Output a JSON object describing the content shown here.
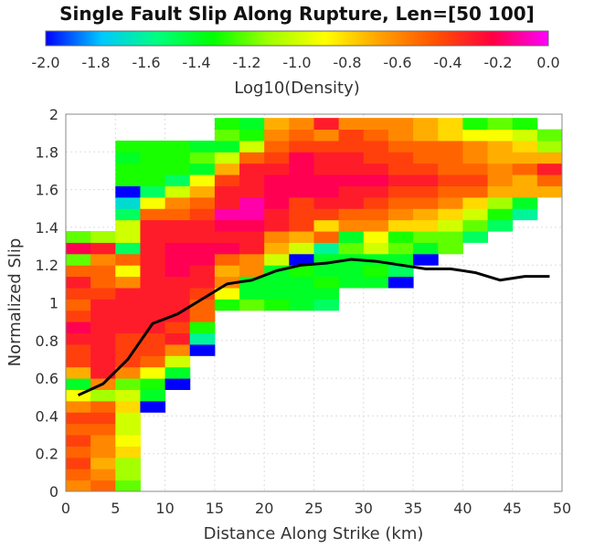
{
  "chart_data": {
    "type": "heatmap",
    "title": "Single Fault Slip Along Rupture, Len=[50 100]",
    "xlabel": "Distance Along Strike (km)",
    "ylabel": "Normalized Slip",
    "xlim": [
      0,
      50
    ],
    "ylim": [
      0,
      2
    ],
    "x_ticks": [
      "0",
      "5",
      "10",
      "15",
      "20",
      "25",
      "30",
      "35",
      "40",
      "45",
      "50"
    ],
    "y_ticks": [
      "0",
      "0.2",
      "0.4",
      "0.6",
      "0.8",
      "1",
      "1.2",
      "1.4",
      "1.6",
      "1.8",
      "2"
    ],
    "grid": true,
    "colorbar": {
      "label": "Log10(Density)",
      "range": [
        -2.0,
        0.0
      ],
      "ticks": [
        "-2.0",
        "-1.8",
        "-1.6",
        "-1.4",
        "-1.2",
        "-1.0",
        "-0.8",
        "-0.6",
        "-0.4",
        "-0.2",
        "0.0"
      ],
      "colormap": [
        "#0000ff",
        "#00c8ff",
        "#00ff7f",
        "#00ff00",
        "#a0ff00",
        "#ffff00",
        "#ffa000",
        "#ff5000",
        "#ff0040",
        "#ff00ff"
      ]
    },
    "bin_width_x": 2.5,
    "bin_height_y": 0.06,
    "columns": [
      {
        "x0": 0,
        "y0": 0.0,
        "values": [
          -0.6,
          -0.5,
          -0.4,
          -0.5,
          -0.4,
          -0.5,
          -0.4,
          -0.6,
          -0.9,
          -1.4,
          -0.7,
          -0.4,
          -0.4,
          -0.3,
          -0.2,
          -0.4,
          -0.5,
          -0.4,
          -0.3,
          -0.5,
          -1.2,
          -0.2,
          -1.2
        ]
      },
      {
        "x0": 2.5,
        "y0": 0.0,
        "values": [
          -0.5,
          -0.6,
          -0.7,
          -0.6,
          -0.6,
          -0.5,
          -0.4,
          -0.5,
          -1.1,
          -0.6,
          -0.3,
          -0.3,
          -0.3,
          -0.3,
          -0.3,
          -0.3,
          -0.3,
          -0.4,
          -0.5,
          -0.5,
          -0.6,
          -0.3,
          -1.1
        ]
      },
      {
        "x0": 5,
        "y0": 0.0,
        "values": [
          -1.2,
          -1.1,
          -1.1,
          -0.8,
          -0.9,
          -1.0,
          -1.0,
          -0.8,
          -1.0,
          -1.2,
          -0.6,
          -0.4,
          -0.4,
          -0.4,
          -0.3,
          -0.3,
          -0.3,
          -0.3,
          -0.6,
          -0.9,
          -0.5,
          -1.5,
          -1.0,
          -1.0,
          -1.5,
          -1.7,
          -2.0,
          -1.3,
          -1.3,
          -1.4,
          -1.3
        ]
      },
      {
        "x0": 7.5,
        "y0": 0.0,
        "values": [
          null,
          null,
          null,
          null,
          null,
          null,
          null,
          -2.0,
          -1.4,
          -1.3,
          -0.9,
          -0.5,
          -0.4,
          -0.4,
          -0.3,
          -0.3,
          -0.3,
          -0.3,
          -0.3,
          -0.3,
          -0.3,
          -0.3,
          -0.3,
          -0.3,
          -0.5,
          -0.9,
          -1.5,
          -1.3,
          -1.3,
          -1.3,
          -1.3
        ]
      },
      {
        "x0": 10,
        "y0": 0.0,
        "values": [
          null,
          null,
          null,
          null,
          null,
          null,
          null,
          null,
          null,
          -2.0,
          -1.4,
          -1.0,
          -0.6,
          -0.3,
          -0.4,
          -0.3,
          -0.3,
          -0.3,
          -0.3,
          -0.2,
          -0.2,
          -0.2,
          -0.3,
          -0.3,
          -0.5,
          -0.6,
          -1.0,
          -1.5,
          -1.3,
          -1.3,
          -1.3
        ]
      },
      {
        "x0": 12.5,
        "y0": 0.0,
        "values": [
          null,
          null,
          null,
          null,
          null,
          null,
          null,
          null,
          null,
          null,
          null,
          null,
          -2.0,
          -1.6,
          -1.3,
          -0.5,
          -0.5,
          -0.4,
          -0.3,
          -0.3,
          -0.2,
          -0.2,
          -0.3,
          -0.3,
          -0.4,
          -0.5,
          -0.7,
          -0.9,
          -1.4,
          -1.2,
          -1.4
        ]
      },
      {
        "x0": 15,
        "y0": 0.0,
        "values": [
          null,
          null,
          null,
          null,
          null,
          null,
          null,
          null,
          null,
          null,
          null,
          null,
          null,
          null,
          null,
          null,
          -1.3,
          -0.9,
          -0.6,
          -0.7,
          -0.5,
          -0.2,
          -0.3,
          -0.2,
          -0.1,
          -0.3,
          -0.3,
          -0.4,
          -0.7,
          -1.0,
          -1.4,
          -1.2,
          -1.3
        ]
      },
      {
        "x0": 17.5,
        "y0": 0.0,
        "values": [
          null,
          null,
          null,
          null,
          null,
          null,
          null,
          null,
          null,
          null,
          null,
          null,
          null,
          null,
          null,
          null,
          -1.2,
          -1.4,
          -1.4,
          -0.6,
          -0.6,
          -0.3,
          -0.3,
          -0.2,
          -0.1,
          -0.1,
          -0.3,
          -0.3,
          -0.3,
          -0.5,
          -1.0,
          -1.3,
          -1.4
        ]
      },
      {
        "x0": 20,
        "y0": 0.0,
        "values": [
          null,
          null,
          null,
          null,
          null,
          null,
          null,
          null,
          null,
          null,
          null,
          null,
          null,
          null,
          null,
          null,
          -1.3,
          -1.4,
          -1.4,
          -1.4,
          -1.0,
          -0.7,
          -0.6,
          -0.3,
          -0.3,
          -0.2,
          -0.2,
          -0.2,
          -0.3,
          -0.4,
          -0.5,
          -0.6,
          -0.7,
          -0.4,
          -0.4,
          -1.2,
          -1.5
        ]
      },
      {
        "x0": 22.5,
        "y0": 0.0,
        "values": [
          null,
          null,
          null,
          null,
          null,
          null,
          null,
          null,
          null,
          null,
          null,
          null,
          null,
          null,
          null,
          null,
          -1.4,
          -1.4,
          -1.4,
          -1.3,
          -2.0,
          -1.0,
          -0.7,
          -0.4,
          -0.4,
          -0.4,
          -0.2,
          -0.2,
          -0.2,
          -0.2,
          -0.4,
          -0.5,
          -0.6,
          -0.7,
          -0.3,
          -0.4,
          -1.3,
          -0.7,
          -1.3
        ]
      },
      {
        "x0": 25,
        "y0": 0.0,
        "values": [
          null,
          null,
          null,
          null,
          null,
          null,
          null,
          null,
          null,
          null,
          null,
          null,
          null,
          null,
          null,
          null,
          -1.5,
          -1.4,
          -1.3,
          -1.4,
          -1.4,
          -1.6,
          -0.5,
          -0.8,
          -0.4,
          -0.3,
          -0.2,
          -0.2,
          -0.3,
          -0.3,
          -0.4,
          -0.6,
          -0.3,
          -0.4,
          -1.0,
          -0.8,
          -1.4,
          -1.4,
          -1.4,
          -1.4,
          -2.0
        ]
      },
      {
        "x0": 27.5,
        "y0": 0.0,
        "values": [
          null,
          null,
          null,
          null,
          null,
          null,
          null,
          null,
          null,
          null,
          null,
          null,
          null,
          null,
          null,
          null,
          null,
          null,
          -1.4,
          -1.4,
          -1.4,
          -1.2,
          -1.4,
          -0.6,
          -0.5,
          -0.3,
          -0.3,
          -0.2,
          -0.3,
          -0.3,
          -0.4,
          -0.4,
          -0.6,
          -0.3,
          -0.6,
          -1.2,
          -1.4,
          -1.2,
          -1.3,
          -1.6,
          -1.3
        ]
      },
      {
        "x0": 30,
        "y0": 0.0,
        "values": [
          null,
          null,
          null,
          null,
          null,
          null,
          null,
          null,
          null,
          null,
          null,
          null,
          null,
          null,
          null,
          null,
          null,
          null,
          -1.4,
          -1.3,
          -1.4,
          -1.0,
          -0.9,
          -0.6,
          -0.5,
          -0.4,
          -0.3,
          -0.2,
          -0.3,
          -0.4,
          -0.4,
          -0.5,
          -0.6,
          -0.5,
          -0.7,
          -1.0,
          -1.3,
          -1.3,
          -1.4,
          -1.5,
          -1.3
        ]
      },
      {
        "x0": 32.5,
        "y0": 0.0,
        "values": [
          null,
          null,
          null,
          null,
          null,
          null,
          null,
          null,
          null,
          null,
          null,
          null,
          null,
          null,
          null,
          null,
          null,
          null,
          -2.0,
          -1.5,
          -1.4,
          -1.2,
          -1.3,
          -0.8,
          -0.6,
          -0.5,
          -0.4,
          -0.3,
          -0.4,
          -0.4,
          -0.5,
          -0.6,
          -0.6,
          -0.5,
          -0.8,
          -1.4,
          null,
          -1.4,
          -1.4,
          -1.5
        ]
      },
      {
        "x0": 35,
        "y0": 0.0,
        "values": [
          null,
          null,
          null,
          null,
          null,
          null,
          null,
          null,
          null,
          null,
          null,
          null,
          null,
          null,
          null,
          null,
          null,
          null,
          null,
          null,
          -2.0,
          -1.4,
          -1.2,
          -0.8,
          -0.7,
          -0.5,
          -0.4,
          -0.3,
          -0.4,
          -0.5,
          -0.5,
          -0.7,
          -0.7,
          -0.6,
          -0.8,
          -1.2,
          null,
          -1.4,
          -1.4
        ]
      },
      {
        "x0": 37.5,
        "y0": 0.0,
        "values": [
          null,
          null,
          null,
          null,
          null,
          null,
          null,
          null,
          null,
          null,
          null,
          null,
          null,
          null,
          null,
          null,
          null,
          null,
          null,
          null,
          null,
          -1.2,
          -1.2,
          -1.0,
          -0.8,
          -0.6,
          -0.5,
          -0.4,
          -0.5,
          -0.5,
          -0.5,
          -0.8,
          -0.8,
          -0.6,
          -0.9,
          -1.4,
          null,
          -1.4,
          -1.4
        ]
      },
      {
        "x0": 40,
        "y0": 0.0,
        "values": [
          null,
          null,
          null,
          null,
          null,
          null,
          null,
          null,
          null,
          null,
          null,
          null,
          null,
          null,
          null,
          null,
          null,
          null,
          null,
          null,
          null,
          null,
          -1.5,
          -1.2,
          -1.0,
          -0.8,
          -0.5,
          -0.4,
          -0.5,
          -0.6,
          -0.6,
          -0.9,
          -1.3,
          -1.4,
          null,
          null,
          null,
          -1.4,
          -1.4,
          -2.0
        ]
      },
      {
        "x0": 42.5,
        "y0": 0.0,
        "values": [
          null,
          null,
          null,
          null,
          null,
          null,
          null,
          null,
          null,
          null,
          null,
          null,
          null,
          null,
          null,
          null,
          null,
          null,
          null,
          null,
          null,
          null,
          null,
          -1.5,
          -1.3,
          -1.1,
          -0.7,
          -0.6,
          -0.6,
          -0.7,
          -0.7,
          -0.9,
          -1.2,
          -1.4
        ]
      },
      {
        "x0": 45,
        "y0": 0.0,
        "values": [
          null,
          null,
          null,
          null,
          null,
          null,
          null,
          null,
          null,
          null,
          null,
          null,
          null,
          null,
          null,
          null,
          null,
          null,
          null,
          null,
          null,
          null,
          null,
          null,
          -1.6,
          -1.4,
          -0.7,
          -0.7,
          -0.5,
          -0.7,
          -0.8,
          -1.0,
          -1.3,
          -1.7
        ]
      },
      {
        "x0": 47.5,
        "y0": 0.0,
        "values": [
          null,
          null,
          null,
          null,
          null,
          null,
          null,
          null,
          null,
          null,
          null,
          null,
          null,
          null,
          null,
          null,
          null,
          null,
          null,
          null,
          null,
          null,
          null,
          null,
          null,
          null,
          -0.7,
          -0.5,
          -0.3,
          -0.7,
          -1.1,
          -1.2
        ]
      },
      {
        "x0": 50,
        "y0": 0.0,
        "values": []
      }
    ],
    "mean_line": {
      "x": [
        1.25,
        3.75,
        6.25,
        8.75,
        11.25,
        13.75,
        16.25,
        18.75,
        21.25,
        23.75,
        26.25,
        28.75,
        31.25,
        33.75,
        36.25,
        38.75,
        41.25,
        43.75,
        46.25,
        48.75
      ],
      "y": [
        0.51,
        0.57,
        0.7,
        0.89,
        0.94,
        1.02,
        1.1,
        1.12,
        1.17,
        1.2,
        1.21,
        1.23,
        1.22,
        1.2,
        1.18,
        1.18,
        1.16,
        1.12,
        1.14,
        1.14
      ],
      "color": "#000000"
    }
  }
}
